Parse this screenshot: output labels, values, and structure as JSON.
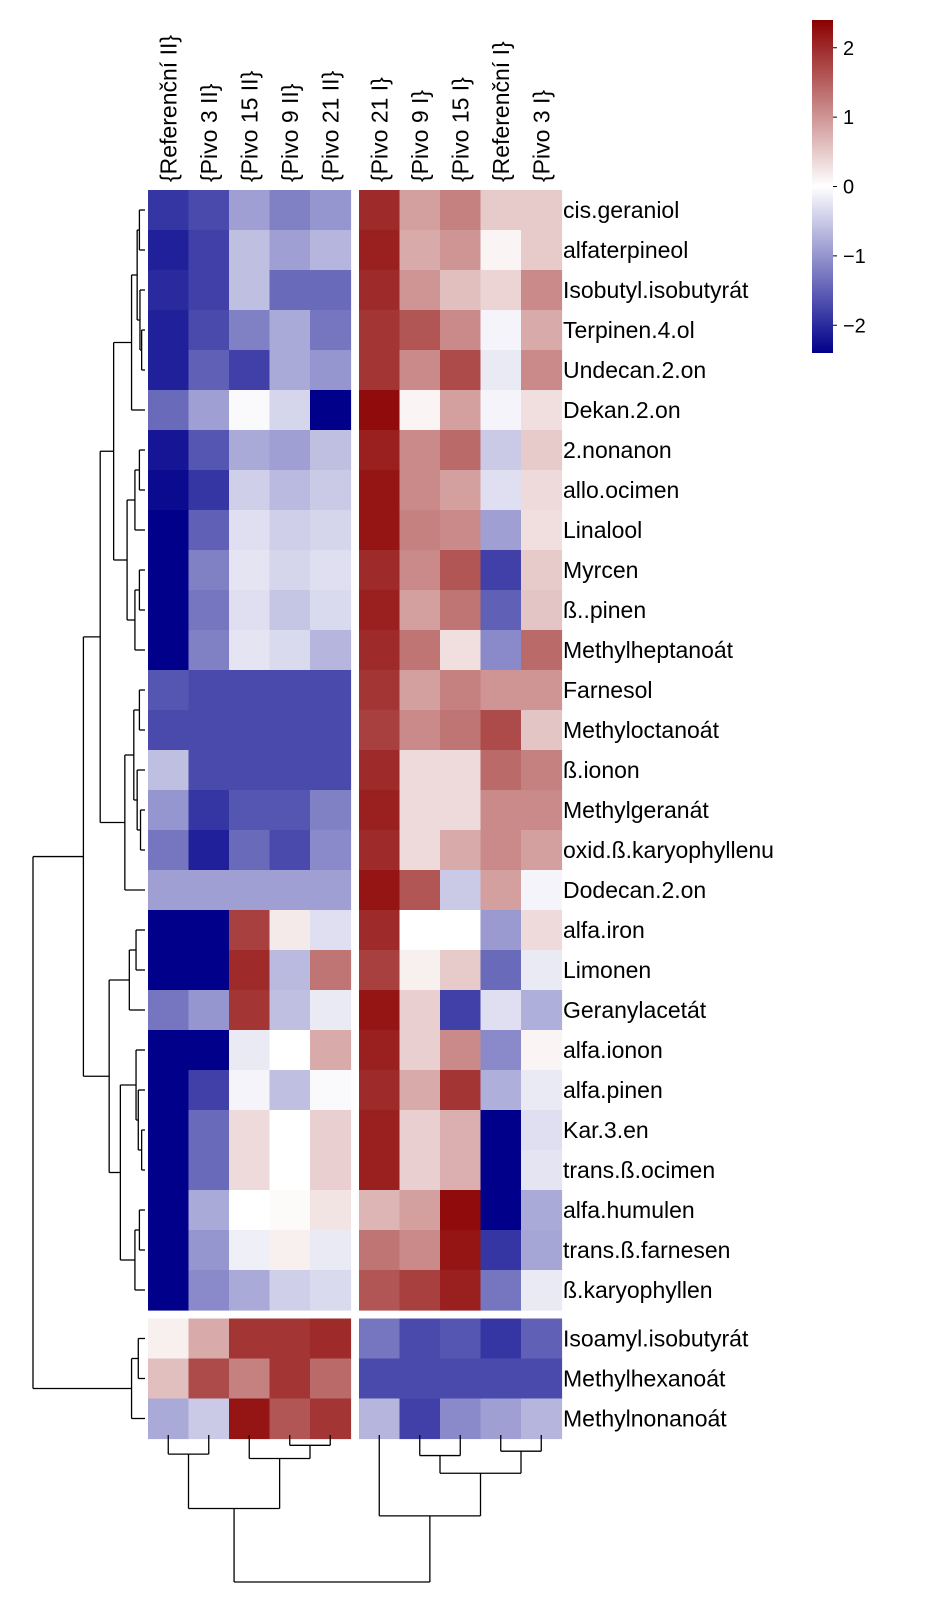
{
  "chart_data": {
    "type": "heatmap",
    "title": "",
    "columns": [
      "{Referenční II}",
      "{Pivo 3 II}",
      "{Pivo 15 II}",
      "{Pivo 9 II}",
      "{Pivo 21 II}",
      "{Pivo 21 I}",
      "{Pivo 9 I}",
      "{Pivo 15 I}",
      "{Referenční I}",
      "{Pivo 3 I}"
    ],
    "rows": [
      "cis.geraniol",
      "alfaterpineol",
      "Isobutyl.isobutyrát",
      "Terpinen.4.ol",
      "Undecan.2.on",
      "Dekan.2.on",
      "2.nonanon",
      "allo.ocimen",
      "Linalool",
      "Myrcen",
      "ß..pinen",
      "Methylheptanoát",
      "Farnesol",
      "Methyloctanoát",
      "ß.ionon",
      "Methylgeranát",
      "oxid.ß.karyophyllenu",
      "Dodecan.2.on",
      "alfa.iron",
      "Limonen",
      "Geranylacetát",
      "alfa.ionon",
      "alfa.pinen",
      "Kar.3.en",
      "trans.ß.ocimen",
      "alfa.humulen",
      "trans.ß.farnesen",
      "ß.karyophyllen",
      "Isoamyl.isobutyrát",
      "Methylhexanoát",
      "Methylnonanoát"
    ],
    "values": [
      [
        -1.9,
        -1.7,
        -0.9,
        -1.2,
        -1.0,
        2.0,
        0.9,
        1.2,
        0.5,
        0.5
      ],
      [
        -2.1,
        -1.8,
        -0.6,
        -0.9,
        -0.7,
        2.1,
        0.8,
        1.0,
        0.1,
        0.5
      ],
      [
        -2.0,
        -1.8,
        -0.6,
        -1.4,
        -1.4,
        2.0,
        1.0,
        0.6,
        0.4,
        1.1
      ],
      [
        -2.1,
        -1.7,
        -1.2,
        -0.8,
        -1.3,
        1.9,
        1.6,
        1.1,
        -0.1,
        0.8
      ],
      [
        -2.1,
        -1.5,
        -1.8,
        -0.8,
        -1.0,
        1.9,
        1.1,
        1.7,
        -0.2,
        1.1
      ],
      [
        -1.4,
        -0.9,
        -0.05,
        -0.4,
        -2.4,
        2.3,
        0.1,
        0.9,
        -0.1,
        0.3
      ],
      [
        -2.2,
        -1.6,
        -0.8,
        -0.9,
        -0.6,
        2.1,
        1.1,
        1.4,
        -0.5,
        0.5
      ],
      [
        -2.3,
        -1.9,
        -0.45,
        -0.65,
        -0.5,
        2.2,
        1.1,
        0.9,
        -0.3,
        0.35
      ],
      [
        -2.4,
        -1.5,
        -0.3,
        -0.45,
        -0.4,
        2.2,
        1.2,
        1.1,
        -0.9,
        0.3
      ],
      [
        -2.4,
        -1.2,
        -0.25,
        -0.4,
        -0.3,
        2.0,
        1.1,
        1.6,
        -1.8,
        0.5
      ],
      [
        -2.4,
        -1.3,
        -0.3,
        -0.55,
        -0.35,
        2.1,
        0.9,
        1.3,
        -1.5,
        0.55
      ],
      [
        -2.4,
        -1.2,
        -0.25,
        -0.35,
        -0.7,
        2.0,
        1.3,
        0.3,
        -1.1,
        1.4
      ],
      [
        -1.6,
        -1.7,
        -1.7,
        -1.7,
        -1.7,
        1.9,
        0.9,
        1.2,
        1.0,
        1.0
      ],
      [
        -1.7,
        -1.7,
        -1.7,
        -1.7,
        -1.7,
        1.8,
        1.1,
        1.3,
        1.7,
        0.55
      ],
      [
        -0.6,
        -1.7,
        -1.7,
        -1.7,
        -1.7,
        2.0,
        0.35,
        0.35,
        1.4,
        1.2
      ],
      [
        -1.0,
        -1.9,
        -1.6,
        -1.6,
        -1.2,
        2.1,
        0.35,
        0.35,
        1.1,
        1.1
      ],
      [
        -1.3,
        -2.1,
        -1.4,
        -1.7,
        -1.1,
        2.0,
        0.35,
        0.8,
        1.1,
        0.9
      ],
      [
        -0.9,
        -0.9,
        -0.9,
        -0.9,
        -0.9,
        2.2,
        1.6,
        -0.5,
        0.9,
        -0.1
      ],
      [
        -2.4,
        -2.4,
        1.8,
        0.2,
        -0.3,
        2.0,
        0.0,
        0.0,
        -0.95,
        0.35
      ],
      [
        -2.4,
        -2.4,
        2.0,
        -0.65,
        1.3,
        1.8,
        0.15,
        0.5,
        -1.4,
        -0.2
      ],
      [
        -1.3,
        -1.0,
        1.9,
        -0.6,
        -0.2,
        2.2,
        0.45,
        -1.8,
        -0.3,
        -0.75
      ],
      [
        -2.4,
        -2.4,
        -0.2,
        0.0,
        0.8,
        2.1,
        0.45,
        1.1,
        -1.1,
        0.1
      ],
      [
        -2.4,
        -1.8,
        -0.1,
        -0.6,
        -0.05,
        2.0,
        0.8,
        1.9,
        -0.75,
        -0.2
      ],
      [
        -2.4,
        -1.4,
        0.35,
        0.0,
        0.45,
        2.1,
        0.45,
        0.75,
        -2.4,
        -0.3
      ],
      [
        -2.4,
        -1.4,
        0.35,
        0.0,
        0.45,
        2.1,
        0.45,
        0.75,
        -2.4,
        -0.25
      ],
      [
        -2.4,
        -0.8,
        0.0,
        0.05,
        0.25,
        0.7,
        0.9,
        2.3,
        -2.4,
        -0.8
      ],
      [
        -2.4,
        -1.0,
        -0.15,
        0.15,
        -0.2,
        1.3,
        1.1,
        2.2,
        -1.9,
        -0.85
      ],
      [
        -2.4,
        -1.1,
        -0.8,
        -0.45,
        -0.35,
        1.6,
        1.8,
        2.1,
        -1.3,
        -0.2
      ],
      [
        0.15,
        0.8,
        1.9,
        1.9,
        2.0,
        -1.3,
        -1.7,
        -1.6,
        -1.9,
        -1.5
      ],
      [
        0.6,
        1.7,
        1.2,
        1.9,
        1.4,
        -1.7,
        -1.7,
        -1.7,
        -1.7,
        -1.7
      ],
      [
        -0.8,
        -0.5,
        2.2,
        1.6,
        1.9,
        -0.7,
        -1.8,
        -1.1,
        -0.9,
        -0.7
      ]
    ],
    "row_groups": [
      28,
      3
    ],
    "column_groups": [
      5,
      5
    ],
    "color_scale": {
      "low": "#00008B",
      "mid": "#FFFFFF",
      "high": "#8B0000",
      "min": -2.4,
      "max": 2.4,
      "ticks": [
        "2",
        "1",
        "0",
        "−1",
        "−2"
      ],
      "tick_values": [
        2,
        1,
        0,
        -1,
        -2
      ]
    },
    "legend_position": "top-right"
  }
}
